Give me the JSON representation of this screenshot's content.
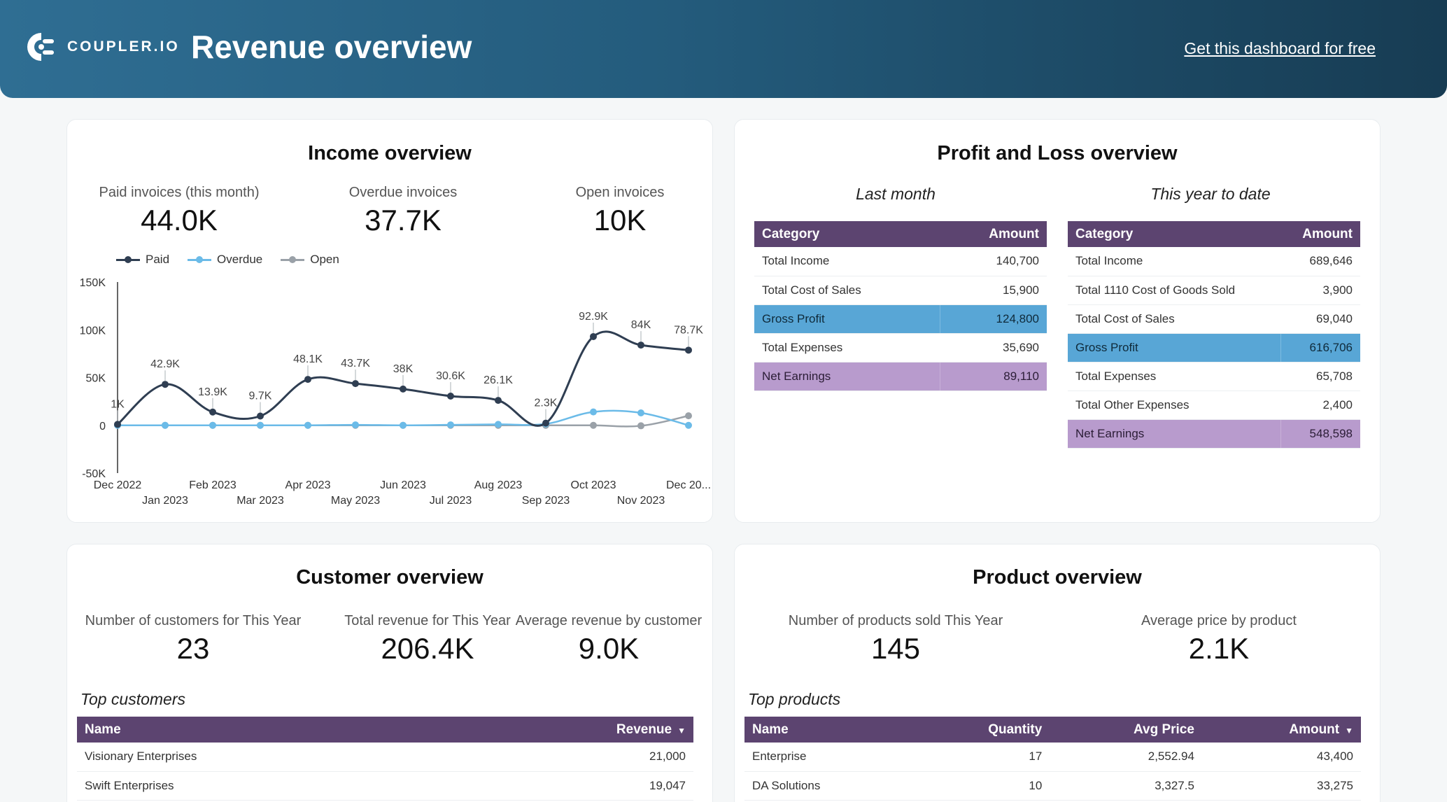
{
  "header": {
    "logo_text": "COUPLER.IO",
    "title": "Revenue overview",
    "cta": "Get this dashboard for free"
  },
  "income": {
    "title": "Income overview",
    "kpis": [
      {
        "label": "Paid invoices (this month)",
        "value": "44.0K"
      },
      {
        "label": "Overdue invoices",
        "value": "37.7K"
      },
      {
        "label": "Open invoices",
        "value": "10K"
      }
    ],
    "legend": [
      "Paid",
      "Overdue",
      "Open"
    ]
  },
  "chart_data": {
    "type": "line",
    "x": [
      "Dec 2022",
      "Jan 2023",
      "Feb 2023",
      "Mar 2023",
      "Apr 2023",
      "May 2023",
      "Jun 2023",
      "Jul 2023",
      "Aug 2023",
      "Sep 2023",
      "Oct 2023",
      "Nov 2023",
      "Dec 20..."
    ],
    "series": [
      {
        "name": "Paid",
        "color": "#2f3e52",
        "values": [
          1000,
          42900,
          13900,
          9700,
          48100,
          43700,
          38000,
          30600,
          26100,
          2300,
          92900,
          84000,
          78700
        ],
        "labels": [
          "1K",
          "42.9K",
          "13.9K",
          "9.7K",
          "48.1K",
          "43.7K",
          "38K",
          "30.6K",
          "26.1K",
          "2.3K",
          "92.9K",
          "84K",
          "78.7K"
        ]
      },
      {
        "name": "Overdue",
        "color": "#6bbbe8",
        "values": [
          0,
          0,
          0,
          0,
          0,
          500,
          0,
          500,
          1000,
          1500,
          14000,
          13000,
          0
        ]
      },
      {
        "name": "Open",
        "color": "#9aa1a8",
        "values": [
          0,
          0,
          0,
          0,
          0,
          0,
          0,
          0,
          0,
          0,
          0,
          -500,
          10000
        ]
      }
    ],
    "y_ticks": [
      "150K",
      "100K",
      "50K",
      "0",
      "-50K"
    ],
    "ylim": [
      -50000,
      150000
    ],
    "legend_position": "top-left"
  },
  "pnl": {
    "title": "Profit and Loss overview",
    "last_month": {
      "label": "Last month",
      "headers": [
        "Category",
        "Amount"
      ],
      "rows": [
        {
          "category": "Total Income",
          "amount": "140,700"
        },
        {
          "category": "Total Cost of Sales",
          "amount": "15,900"
        },
        {
          "category": "Gross Profit",
          "amount": "124,800"
        },
        {
          "category": "Total Expenses",
          "amount": "35,690"
        },
        {
          "category": "Net Earnings",
          "amount": "89,110"
        }
      ]
    },
    "ytd": {
      "label": "This year to date",
      "headers": [
        "Category",
        "Amount"
      ],
      "rows": [
        {
          "category": "Total Income",
          "amount": "689,646"
        },
        {
          "category": "Total 1110 Cost of Goods Sold",
          "amount": "3,900"
        },
        {
          "category": "Total Cost of Sales",
          "amount": "69,040"
        },
        {
          "category": "Gross Profit",
          "amount": "616,706"
        },
        {
          "category": "Total Expenses",
          "amount": "65,708"
        },
        {
          "category": "Total Other Expenses",
          "amount": "2,400"
        },
        {
          "category": "Net Earnings",
          "amount": "548,598"
        }
      ]
    },
    "highlight_blue": "#58a6d6",
    "highlight_purple": "#b89bcd"
  },
  "customer": {
    "title": "Customer overview",
    "kpis": [
      {
        "label": "Number of customers for This Year",
        "value": "23"
      },
      {
        "label": "Total revenue for This Year",
        "value": "206.4K"
      },
      {
        "label": "Average revenue by customer",
        "value": "9.0K"
      }
    ],
    "table_label": "Top customers",
    "headers": [
      "Name",
      "Revenue"
    ],
    "rows": [
      {
        "name": "Visionary Enterprises",
        "revenue": "21,000"
      },
      {
        "name": "Swift Enterprises",
        "revenue": "19,047"
      }
    ]
  },
  "product": {
    "title": "Product overview",
    "kpis": [
      {
        "label": "Number of products sold This Year",
        "value": "145"
      },
      {
        "label": "Average price by product",
        "value": "2.1K"
      }
    ],
    "table_label": "Top products",
    "headers": [
      "Name",
      "Quantity",
      "Avg Price",
      "Amount"
    ],
    "rows": [
      {
        "name": "Enterprise",
        "quantity": "17",
        "avg_price": "2,552.94",
        "amount": "43,400"
      },
      {
        "name": "DA Solutions",
        "quantity": "10",
        "avg_price": "3,327.5",
        "amount": "33,275"
      }
    ]
  },
  "colors": {
    "header_start": "#2f6e93",
    "header_end": "#173c53",
    "table_header": "#5c4470"
  }
}
